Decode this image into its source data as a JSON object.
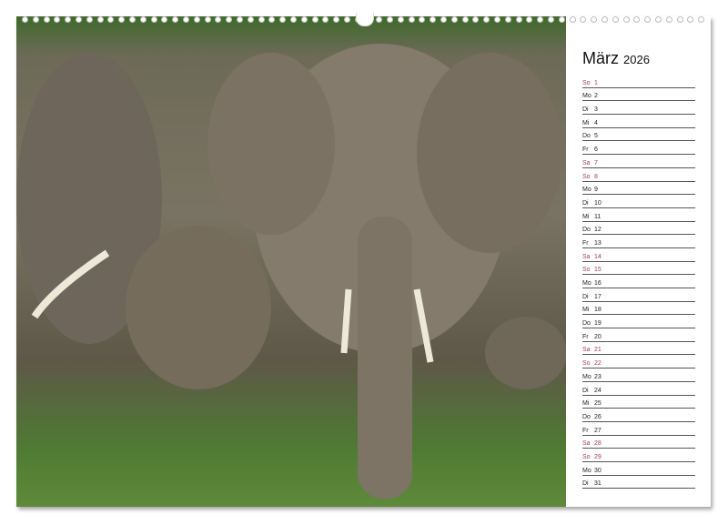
{
  "calendar": {
    "month": "März",
    "year": "2026",
    "days": [
      {
        "wd": "So",
        "d": "1",
        "weekend": true
      },
      {
        "wd": "Mo",
        "d": "2"
      },
      {
        "wd": "Di",
        "d": "3"
      },
      {
        "wd": "Mi",
        "d": "4"
      },
      {
        "wd": "Do",
        "d": "5"
      },
      {
        "wd": "Fr",
        "d": "6"
      },
      {
        "wd": "Sa",
        "d": "7",
        "weekend": true
      },
      {
        "wd": "So",
        "d": "8",
        "weekend": true
      },
      {
        "wd": "Mo",
        "d": "9"
      },
      {
        "wd": "Di",
        "d": "10"
      },
      {
        "wd": "Mi",
        "d": "11"
      },
      {
        "wd": "Do",
        "d": "12"
      },
      {
        "wd": "Fr",
        "d": "13"
      },
      {
        "wd": "Sa",
        "d": "14",
        "weekend": true
      },
      {
        "wd": "So",
        "d": "15",
        "weekend": true
      },
      {
        "wd": "Mo",
        "d": "16"
      },
      {
        "wd": "Di",
        "d": "17"
      },
      {
        "wd": "Mi",
        "d": "18"
      },
      {
        "wd": "Do",
        "d": "19"
      },
      {
        "wd": "Fr",
        "d": "20"
      },
      {
        "wd": "Sa",
        "d": "21",
        "weekend": true
      },
      {
        "wd": "So",
        "d": "22",
        "weekend": true
      },
      {
        "wd": "Mo",
        "d": "23"
      },
      {
        "wd": "Di",
        "d": "24"
      },
      {
        "wd": "Mi",
        "d": "25"
      },
      {
        "wd": "Do",
        "d": "26"
      },
      {
        "wd": "Fr",
        "d": "27"
      },
      {
        "wd": "Sa",
        "d": "28",
        "weekend": true
      },
      {
        "wd": "So",
        "d": "29",
        "weekend": true
      },
      {
        "wd": "Mo",
        "d": "30"
      },
      {
        "wd": "Di",
        "d": "31"
      }
    ],
    "weekend_color": "#a0405a"
  },
  "photo": {
    "subject": "elephant-herd"
  }
}
